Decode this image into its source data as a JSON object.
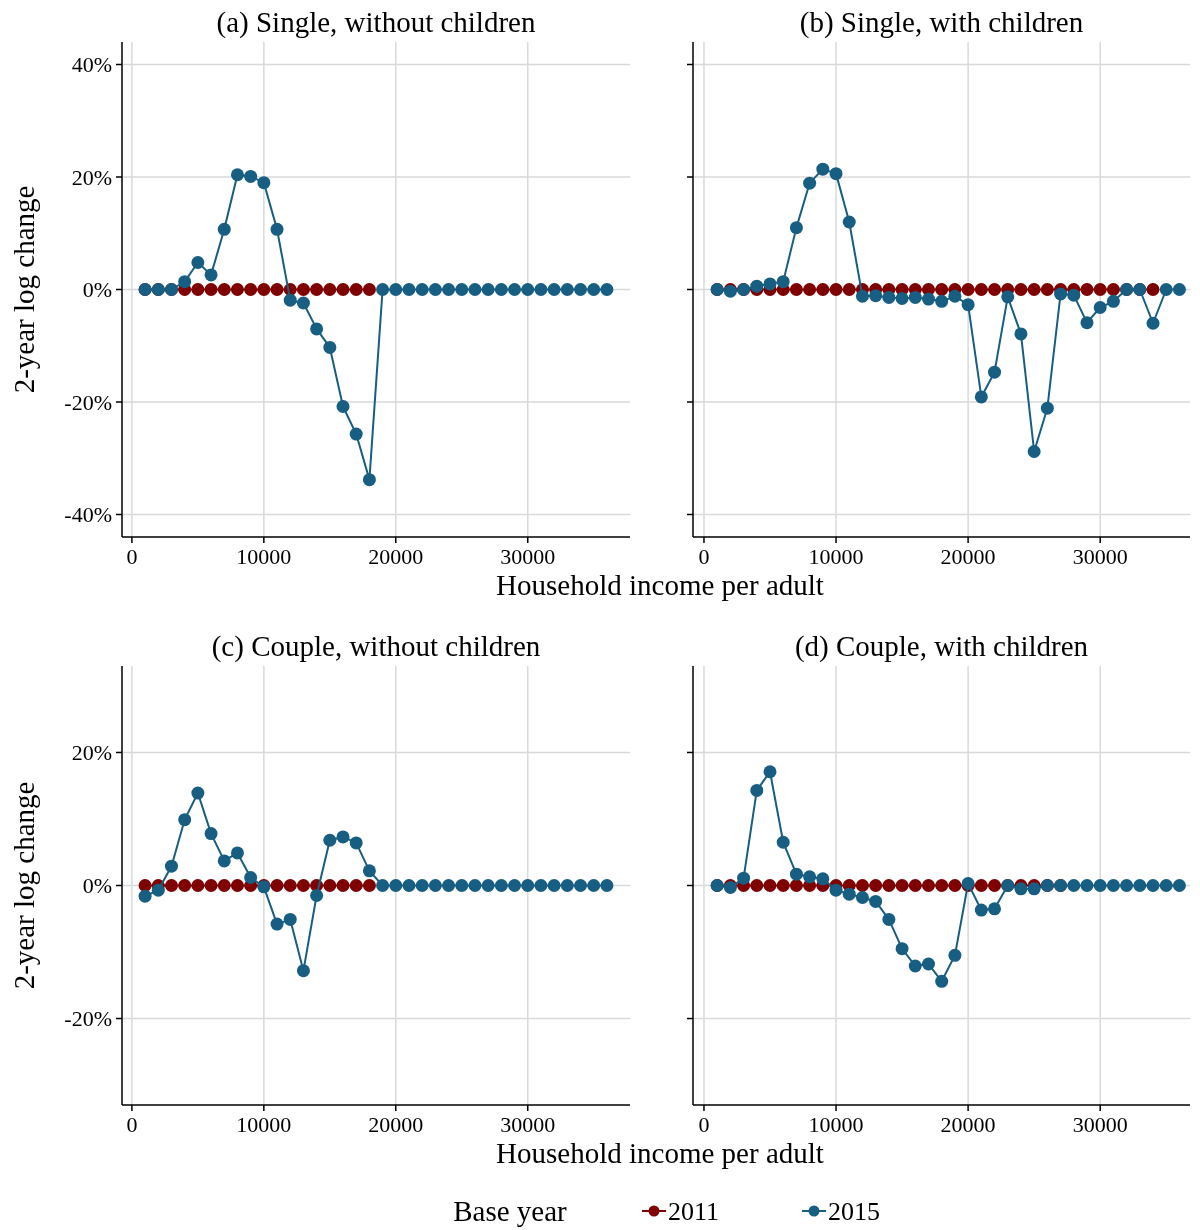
{
  "chart_data": [
    {
      "type": "line",
      "title": "(a) Single, without children",
      "xlabel": "Household income per adult",
      "ylabel": "2-year log change",
      "xlim": [
        -750,
        37750
      ],
      "ylim": [
        -44,
        44
      ],
      "xticks": [
        0,
        10000,
        20000,
        30000
      ],
      "yticks": [
        {
          "value": -40,
          "label": "-40%"
        },
        {
          "value": -20,
          "label": "-20%"
        },
        {
          "value": 0,
          "label": "0%"
        },
        {
          "value": 20,
          "label": "20%"
        },
        {
          "value": 40,
          "label": "40%"
        }
      ],
      "grid": true,
      "marker": "circle",
      "line_style": "solid",
      "series": [
        {
          "color": "#7f0000",
          "x": [
            1000,
            2000,
            3000,
            4000,
            5000,
            6000,
            7000,
            8000,
            9000,
            10000,
            11000,
            12000,
            13000,
            14000,
            15000,
            16000,
            17000,
            18000
          ],
          "values": [
            0,
            0,
            0,
            0,
            0,
            0,
            0,
            0,
            0,
            0,
            0,
            0,
            0,
            0,
            0,
            0,
            0,
            0
          ]
        },
        {
          "color": "#175e82",
          "x": [
            1000,
            2000,
            3000,
            4000,
            5000,
            6000,
            7000,
            8000,
            9000,
            10000,
            11000,
            12000,
            13000,
            14000,
            15000,
            16000,
            17000,
            18000,
            19000,
            20000,
            21000,
            22000,
            23000,
            24000,
            25000,
            26000,
            27000,
            28000,
            29000,
            30000,
            31000,
            32000,
            33000,
            34000,
            35000,
            36000
          ],
          "values": [
            0,
            0,
            0,
            1.4,
            4.8,
            2.6,
            10.7,
            20.4,
            20.1,
            19.0,
            10.7,
            -1.9,
            -2.4,
            -7.0,
            -10.3,
            -20.8,
            -25.7,
            -33.8,
            0,
            0,
            0,
            0,
            0,
            0,
            0,
            0,
            0,
            0,
            0,
            0,
            0,
            0,
            0,
            0,
            0,
            0
          ]
        }
      ]
    },
    {
      "type": "line",
      "title": "(b) Single, with children",
      "xlim": [
        -830,
        36800
      ],
      "ylim": [
        -44,
        44
      ],
      "xticks": [
        0,
        10000,
        20000,
        30000
      ],
      "yticks": [
        {
          "value": -40,
          "label": null
        },
        {
          "value": -20,
          "label": null
        },
        {
          "value": 0,
          "label": null
        },
        {
          "value": 20,
          "label": null
        },
        {
          "value": 40,
          "label": null
        }
      ],
      "tick_labels": "x",
      "grid": true,
      "marker": "circle",
      "line_style": "solid",
      "series": [
        {
          "color": "#7f0000",
          "x": [
            1000,
            2000,
            3000,
            4000,
            5000,
            6000,
            7000,
            8000,
            9000,
            10000,
            11000,
            12000,
            13000,
            14000,
            15000,
            16000,
            17000,
            18000,
            19000,
            20000,
            21000,
            22000,
            23000,
            24000,
            25000,
            26000,
            27000,
            28000,
            29000,
            30000,
            31000,
            32000,
            33000,
            34000
          ],
          "values": [
            0,
            0,
            0,
            0,
            0,
            0,
            0,
            0,
            0,
            0,
            0,
            0,
            0,
            0,
            0,
            0,
            0,
            0,
            0,
            0,
            0,
            0,
            0,
            0,
            0,
            0,
            0,
            0,
            0,
            0,
            0,
            0,
            0,
            0
          ]
        },
        {
          "color": "#175e82",
          "x": [
            1000,
            2000,
            3000,
            4000,
            5000,
            6000,
            7000,
            8000,
            9000,
            10000,
            11000,
            12000,
            13000,
            14000,
            15000,
            16000,
            17000,
            18000,
            19000,
            20000,
            21000,
            22000,
            23000,
            24000,
            25000,
            26000,
            27000,
            28000,
            29000,
            30000,
            31000,
            32000,
            33000,
            34000,
            35000,
            36000
          ],
          "values": [
            0,
            -0.3,
            0,
            0.6,
            1.0,
            1.4,
            11.0,
            18.9,
            21.4,
            20.6,
            12.0,
            -1.2,
            -1.1,
            -1.4,
            -1.6,
            -1.4,
            -1.7,
            -2.1,
            -1.2,
            -2.7,
            -19.1,
            -14.7,
            -1.3,
            -7.9,
            -28.8,
            -21.1,
            -0.8,
            -1.0,
            -5.9,
            -3.2,
            -2.1,
            0,
            0,
            -6.0,
            0,
            0
          ]
        }
      ]
    },
    {
      "type": "line",
      "title": "(c) Couple, without children",
      "xlabel": "Household income per adult",
      "ylabel": "2-year log change",
      "legend": "bottom",
      "legend_title": "Base year",
      "xlim": [
        -750,
        37750
      ],
      "ylim": [
        -33,
        33
      ],
      "xticks": [
        0,
        10000,
        20000,
        30000
      ],
      "yticks": [
        {
          "value": -20,
          "label": "-20%"
        },
        {
          "value": 0,
          "label": "0%"
        },
        {
          "value": 20,
          "label": "20%"
        }
      ],
      "grid": true,
      "marker": "circle",
      "line_style": "solid",
      "series": [
        {
          "name": "2011",
          "color": "#7f0000",
          "x": [
            1000,
            2000,
            3000,
            4000,
            5000,
            6000,
            7000,
            8000,
            9000,
            10000,
            11000,
            12000,
            13000,
            14000,
            15000,
            16000,
            17000,
            18000
          ],
          "values": [
            0,
            0,
            0,
            0,
            0,
            0,
            0,
            0,
            0,
            0,
            0,
            0,
            0,
            0,
            0,
            0,
            0,
            0
          ]
        },
        {
          "name": "2015",
          "color": "#175e82",
          "x": [
            1000,
            2000,
            3000,
            4000,
            5000,
            6000,
            7000,
            8000,
            9000,
            10000,
            11000,
            12000,
            13000,
            14000,
            15000,
            16000,
            17000,
            18000,
            19000,
            20000,
            21000,
            22000,
            23000,
            24000,
            25000,
            26000,
            27000,
            28000,
            29000,
            30000,
            31000,
            32000,
            33000,
            34000,
            35000,
            36000
          ],
          "values": [
            -1.6,
            -0.7,
            2.9,
            9.9,
            13.9,
            7.8,
            3.7,
            4.9,
            1.2,
            -0.2,
            -5.8,
            -5.1,
            -12.8,
            -1.5,
            6.8,
            7.3,
            6.4,
            2.2,
            0,
            0,
            0,
            0,
            0,
            0,
            0,
            0,
            0,
            0,
            0,
            0,
            0,
            0,
            0,
            0,
            0,
            0
          ]
        }
      ]
    },
    {
      "type": "line",
      "title": "(d) Couple, with children",
      "xlim": [
        -830,
        36800
      ],
      "ylim": [
        -33,
        33
      ],
      "xticks": [
        0,
        10000,
        20000,
        30000
      ],
      "yticks": [
        {
          "value": -20,
          "label": null
        },
        {
          "value": 0,
          "label": null
        },
        {
          "value": 20,
          "label": null
        }
      ],
      "tick_labels": "x",
      "grid": true,
      "marker": "circle",
      "line_style": "solid",
      "series": [
        {
          "color": "#7f0000",
          "x": [
            1000,
            2000,
            3000,
            4000,
            5000,
            6000,
            7000,
            8000,
            9000,
            10000,
            11000,
            12000,
            13000,
            14000,
            15000,
            16000,
            17000,
            18000,
            19000,
            20000,
            21000,
            22000,
            23000,
            24000,
            25000,
            26000,
            27000
          ],
          "values": [
            0,
            0,
            0,
            0,
            0,
            0,
            0,
            0,
            0,
            0,
            0,
            0,
            0,
            0,
            0,
            0,
            0,
            0,
            0,
            0,
            0,
            0,
            0,
            0,
            0,
            0,
            0
          ]
        },
        {
          "color": "#175e82",
          "x": [
            1000,
            2000,
            3000,
            4000,
            5000,
            6000,
            7000,
            8000,
            9000,
            10000,
            11000,
            12000,
            13000,
            14000,
            15000,
            16000,
            17000,
            18000,
            19000,
            20000,
            21000,
            22000,
            23000,
            24000,
            25000,
            26000,
            27000,
            28000,
            29000,
            30000,
            31000,
            32000,
            33000,
            34000,
            35000,
            36000
          ],
          "values": [
            0,
            -0.3,
            1.1,
            14.3,
            17.1,
            6.5,
            1.7,
            1.3,
            1.0,
            -0.7,
            -1.3,
            -1.8,
            -2.4,
            -5.1,
            -9.5,
            -12.1,
            -11.8,
            -14.4,
            -10.5,
            0.3,
            -3.7,
            -3.5,
            0,
            -0.5,
            -0.5,
            0,
            0,
            0,
            0,
            0,
            0,
            0,
            0,
            0,
            0,
            0
          ]
        }
      ]
    }
  ]
}
